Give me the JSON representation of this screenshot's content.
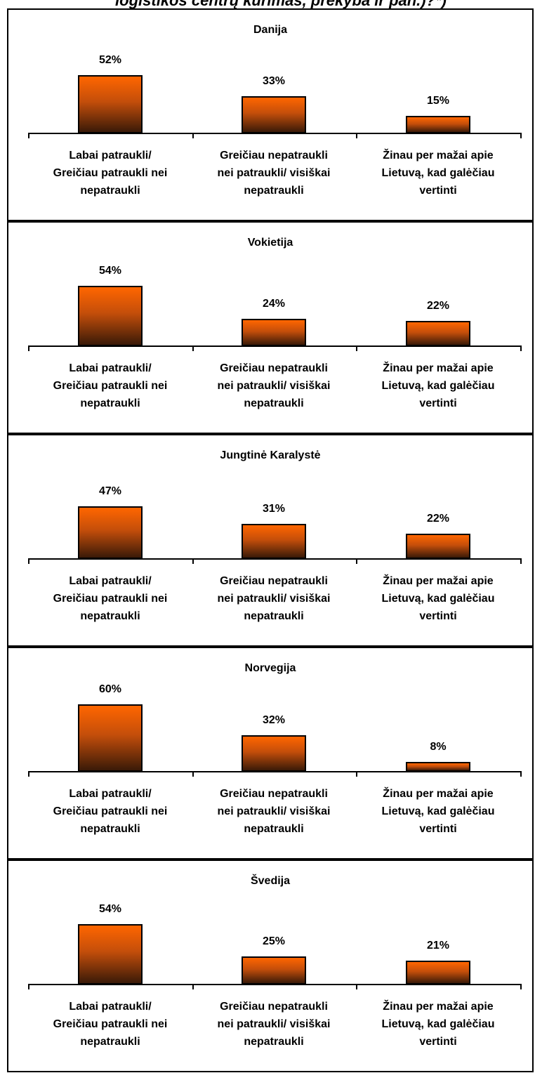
{
  "heading": "logistikos centrų kūrimas, prekyba ir pan.)?*)",
  "chart_data": [
    {
      "type": "bar",
      "title": "Danija",
      "categories": [
        "Labai patraukli/\nGreičiau patraukli nei\nnepatraukli",
        "Greičiau nepatraukli\nnei patraukli/ visiškai\nnepatraukli",
        "Žinau per mažai apie\nLietuvą, kad galėčiau\nvertinti"
      ],
      "values": [
        52,
        33,
        15
      ],
      "value_labels": [
        "52%",
        "33%",
        "15%"
      ],
      "color": "#ff6600"
    },
    {
      "type": "bar",
      "title": "Vokietija",
      "categories": [
        "Labai patraukli/\nGreičiau patraukli nei\nnepatraukli",
        "Greičiau nepatraukli\nnei patraukli/ visiškai\nnepatraukli",
        "Žinau per mažai apie\nLietuvą, kad galėčiau\nvertinti"
      ],
      "values": [
        54,
        24,
        22
      ],
      "value_labels": [
        "54%",
        "24%",
        "22%"
      ],
      "color": "#ff6600"
    },
    {
      "type": "bar",
      "title": "Jungtinė Karalystė",
      "categories": [
        "Labai patraukli/\nGreičiau patraukli nei\nnepatraukli",
        "Greičiau nepatraukli\nnei patraukli/ visiškai\nnepatraukli",
        "Žinau per mažai apie\nLietuvą, kad galėčiau\nvertinti"
      ],
      "values": [
        47,
        31,
        22
      ],
      "value_labels": [
        "47%",
        "31%",
        "22%"
      ],
      "color": "#ff6600"
    },
    {
      "type": "bar",
      "title": "Norvegija",
      "categories": [
        "Labai patraukli/\nGreičiau patraukli nei\nnepatraukli",
        "Greičiau nepatraukli\nnei patraukli/ visiškai\nnepatraukli",
        "Žinau per mažai apie\nLietuvą, kad galėčiau\nvertinti"
      ],
      "values": [
        60,
        32,
        8
      ],
      "value_labels": [
        "60%",
        "32%",
        "8%"
      ],
      "color": "#ff6600"
    },
    {
      "type": "bar",
      "title": "Švedija",
      "categories": [
        "Labai patraukli/\nGreičiau patraukli nei\nnepatraukli",
        "Greičiau nepatraukli\nnei patraukli/ visiškai\nnepatraukli",
        "Žinau per mažai apie\nLietuvą, kad galėčiau\nvertinti"
      ],
      "values": [
        54,
        25,
        21
      ],
      "value_labels": [
        "54%",
        "25%",
        "21%"
      ],
      "color": "#ff6600"
    }
  ]
}
